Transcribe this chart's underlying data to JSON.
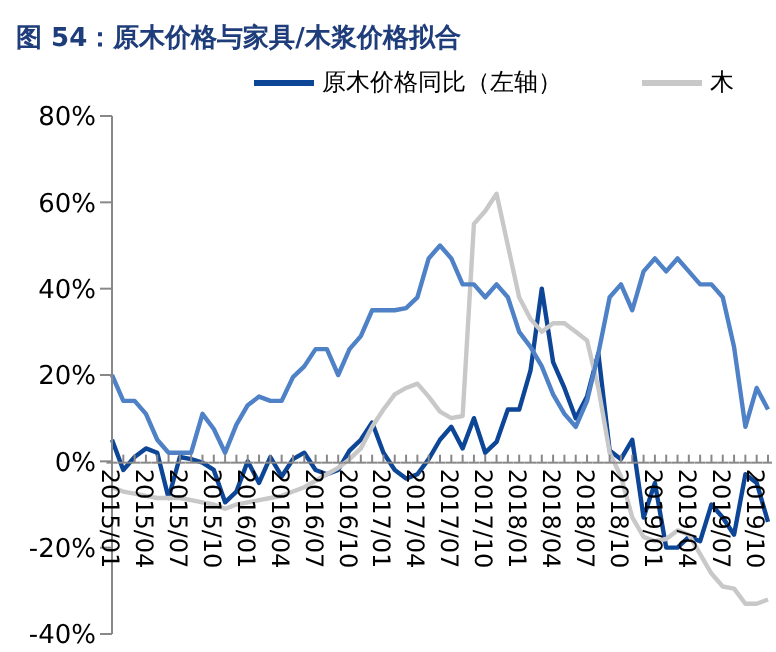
{
  "chart_data": {
    "type": "line",
    "title": "图 54：原木价格与家具/木浆价格拟合",
    "categories": [
      "2015/01",
      null,
      null,
      "2015/04",
      null,
      null,
      "2015/07",
      null,
      null,
      "2015/10",
      null,
      null,
      "2016/01",
      null,
      null,
      "2016/04",
      null,
      null,
      "2016/07",
      null,
      null,
      "2016/10",
      null,
      null,
      "2017/01",
      null,
      null,
      "2017/04",
      null,
      null,
      "2017/07",
      null,
      null,
      "2017/10",
      null,
      null,
      "2018/01",
      null,
      null,
      "2018/04",
      null,
      null,
      "2018/07",
      null,
      null,
      "2018/10",
      null,
      null,
      "2019/01",
      null,
      null,
      "2019/04",
      null,
      null,
      "2019/07",
      null,
      null,
      "2019/10",
      null
    ],
    "series": [
      {
        "name": "原木价格同比（左轴）",
        "color": "#0d4597",
        "values": [
          5,
          -2,
          1,
          3,
          2,
          -8.5,
          1,
          0.5,
          -0.3,
          -2,
          -9.5,
          -7,
          0,
          -5,
          1,
          -3.5,
          0.5,
          2,
          -2,
          -3,
          -2,
          2.5,
          5,
          9,
          2,
          -2,
          -4,
          -3,
          0.5,
          5,
          8,
          3,
          10,
          2,
          4.5,
          12,
          12,
          21,
          40,
          23,
          17,
          10,
          15,
          25,
          2.5,
          0.5,
          5,
          -13,
          -5,
          -20,
          -20,
          -17.5,
          -18.5,
          -10,
          -13,
          -17,
          -3,
          -5,
          -14
        ]
      },
      {
        "name": "木",
        "color": "#c8c8c8",
        "values": [
          -6,
          -7,
          -7.5,
          -8,
          -8.5,
          -8.5,
          -8.5,
          -9,
          -9.5,
          -10,
          -11,
          -10,
          -9.5,
          -9,
          -8.5,
          -8,
          -7,
          -6,
          -4.5,
          -3,
          -1.5,
          0.5,
          3,
          8,
          12,
          15.5,
          17,
          18,
          15,
          11.5,
          10,
          10.5,
          55,
          58,
          62,
          50,
          38,
          33,
          30,
          32,
          32,
          30,
          28,
          17,
          2,
          -3.5,
          -13,
          -17.5,
          -18.5,
          -18,
          -16,
          -17,
          -21.5,
          -26,
          -29,
          -29.5,
          -33,
          -33,
          -32
        ]
      },
      {
        "color": "#4f81c7",
        "values": [
          20,
          14,
          14,
          11,
          5,
          2,
          2,
          2,
          11,
          7.5,
          2,
          8.5,
          13,
          15,
          14,
          14,
          19.5,
          22,
          26,
          26,
          20,
          26,
          29,
          35,
          35,
          35,
          35.5,
          38,
          47,
          50,
          47,
          41,
          41,
          38,
          41,
          38,
          30,
          26.5,
          22,
          15.5,
          11,
          8,
          14,
          25,
          38,
          41,
          35,
          44,
          47,
          44,
          47,
          44,
          41,
          41,
          38,
          26.5,
          8,
          17,
          12
        ]
      }
    ],
    "ylim": [
      -40,
      80
    ],
    "yticks": [
      {
        "value": -40,
        "label": "-40%"
      },
      {
        "value": -20,
        "label": "-20%"
      },
      {
        "value": 0,
        "label": "0%"
      },
      {
        "value": 20,
        "label": "20%"
      },
      {
        "value": 40,
        "label": "40%"
      },
      {
        "value": 60,
        "label": "60%"
      },
      {
        "value": 80,
        "label": "80%"
      }
    ],
    "grid": false,
    "legend": "top",
    "marker": "none",
    "line_style": "solid"
  }
}
